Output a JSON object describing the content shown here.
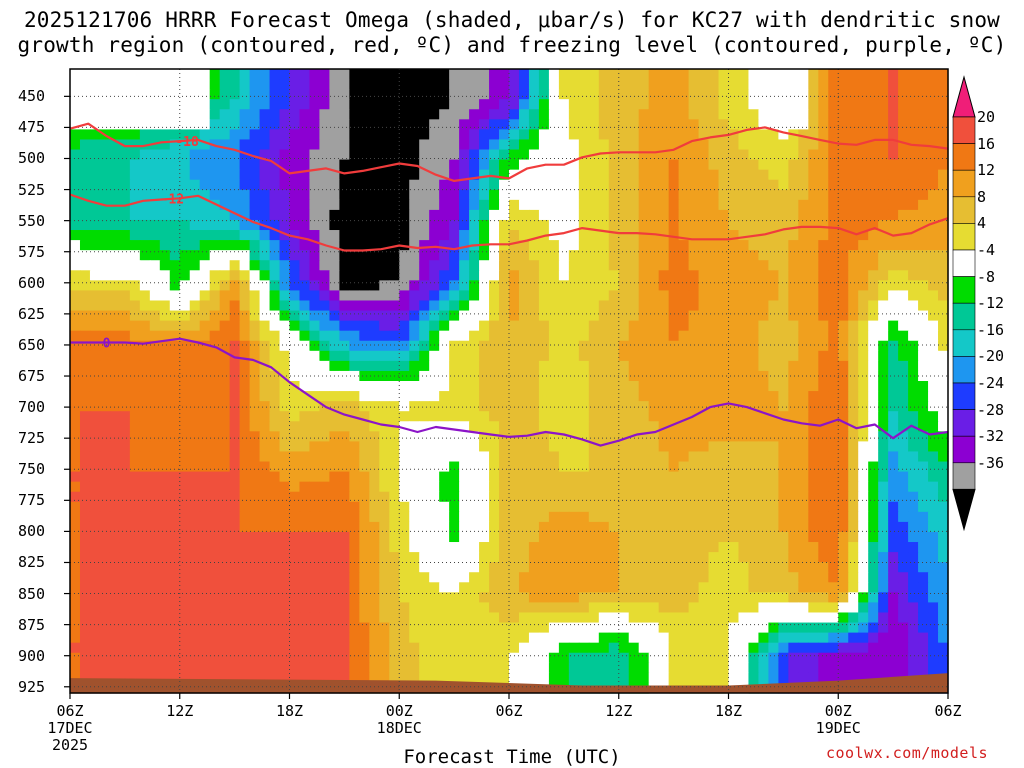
{
  "title_line1": "2025121706 HRRR Forecast Omega (shaded, μbar/s) for KC27 with dendritic snow",
  "title_line2": "growth region (contoured, red, ºC) and freezing level (contoured, purple, ºC)",
  "credit": "coolwx.com/models",
  "colors": {
    "omega_bins": [
      "#000000",
      "#a0a0a0",
      "#8c00d2",
      "#6a1ee6",
      "#1e3cff",
      "#1e96f0",
      "#14c8c8",
      "#00c896",
      "#00dc00",
      "#ffffff",
      "#e6dc32",
      "#e6be32",
      "#f0a01e",
      "#f07814",
      "#f0503c",
      "#f01e78"
    ],
    "dgz_contour": "#f03c3c",
    "freezing_contour": "#8c14c8",
    "ground": "#a0522d"
  },
  "chart_data": {
    "type": "heatmap",
    "title": "2025121706 HRRR Forecast Omega (shaded, μbar/s) for KC27 with dendritic snow growth region (contoured, red, ºC) and freezing level (contoured, purple, ºC)",
    "xlabel": "Forecast Time (UTC)",
    "ylabel": "",
    "x_ticks": [
      {
        "hour": 0,
        "l1": "06Z",
        "l2": "17DEC",
        "l3": "2025"
      },
      {
        "hour": 6,
        "l1": "12Z",
        "l2": "",
        "l3": ""
      },
      {
        "hour": 12,
        "l1": "18Z",
        "l2": "",
        "l3": ""
      },
      {
        "hour": 18,
        "l1": "00Z",
        "l2": "18DEC",
        "l3": ""
      },
      {
        "hour": 24,
        "l1": "06Z",
        "l2": "",
        "l3": ""
      },
      {
        "hour": 30,
        "l1": "12Z",
        "l2": "",
        "l3": ""
      },
      {
        "hour": 36,
        "l1": "18Z",
        "l2": "",
        "l3": ""
      },
      {
        "hour": 42,
        "l1": "00Z",
        "l2": "19DEC",
        "l3": ""
      },
      {
        "hour": 48,
        "l1": "06Z",
        "l2": "",
        "l3": ""
      }
    ],
    "xlim_hours": [
      0,
      48
    ],
    "y_ticks": [
      "450",
      "475",
      "500",
      "525",
      "550",
      "575",
      "600",
      "625",
      "650",
      "675",
      "700",
      "725",
      "750",
      "775",
      "800",
      "825",
      "850",
      "875",
      "900",
      "925"
    ],
    "ylim_hpa": [
      428,
      930
    ],
    "colorbar_labels": [
      "20",
      "16",
      "12",
      "8",
      "4",
      "-4",
      "-8",
      "-12",
      "-16",
      "-20",
      "-24",
      "-28",
      "-32",
      "-36"
    ],
    "colorbar_bounds": [
      -36,
      -32,
      -28,
      -24,
      -20,
      -16,
      -12,
      -8,
      -4,
      4,
      8,
      12,
      16,
      20
    ],
    "omega_hours": [
      0,
      3,
      6,
      9,
      12,
      15,
      18,
      21,
      24,
      27,
      30,
      33,
      36,
      39,
      42,
      45,
      48
    ],
    "omega_levels_hpa": [
      450,
      500,
      550,
      600,
      650,
      700,
      750,
      800,
      850,
      900
    ],
    "omega_values": [
      [
        -99,
        -99,
        -99,
        -12,
        -24,
        -36,
        -40,
        -36,
        -30,
        4,
        10,
        14,
        6,
        -99,
        18,
        20,
        18
      ],
      [
        -10,
        -12,
        -16,
        -20,
        -30,
        -36,
        -38,
        -32,
        -6,
        2,
        10,
        16,
        10,
        6,
        18,
        20,
        16
      ],
      [
        -10,
        -12,
        -12,
        -16,
        -28,
        -38,
        -38,
        -28,
        8,
        2,
        10,
        16,
        12,
        10,
        18,
        16,
        14
      ],
      [
        6,
        6,
        -6,
        14,
        -20,
        -38,
        -36,
        -20,
        14,
        4,
        8,
        18,
        14,
        12,
        18,
        6,
        10
      ],
      [
        18,
        18,
        16,
        20,
        2,
        -16,
        -20,
        4,
        12,
        6,
        12,
        16,
        14,
        10,
        18,
        -10,
        6
      ],
      [
        20,
        20,
        18,
        20,
        6,
        10,
        4,
        6,
        10,
        6,
        10,
        14,
        14,
        12,
        20,
        -12,
        0
      ],
      [
        20,
        20,
        20,
        20,
        14,
        16,
        4,
        -6,
        10,
        8,
        8,
        12,
        10,
        12,
        20,
        -18,
        -8
      ],
      [
        20,
        20,
        20,
        20,
        20,
        20,
        6,
        -6,
        10,
        14,
        12,
        10,
        8,
        12,
        20,
        -22,
        -14
      ],
      [
        20,
        20,
        20,
        20,
        20,
        20,
        8,
        4,
        12,
        14,
        12,
        10,
        6,
        10,
        16,
        -28,
        -16
      ],
      [
        20,
        20,
        20,
        20,
        20,
        20,
        10,
        4,
        4,
        -8,
        -12,
        4,
        4,
        -24,
        -30,
        -32,
        -20
      ]
    ],
    "ground_hpa": [
      [
        0,
        918
      ],
      [
        20,
        920
      ],
      [
        28,
        924
      ],
      [
        36,
        924
      ],
      [
        42,
        920
      ],
      [
        48,
        914
      ]
    ],
    "contours": [
      {
        "label": "-18",
        "label_at_hour": 6.4,
        "points": [
          [
            0,
            476
          ],
          [
            1,
            472
          ],
          [
            2,
            482
          ],
          [
            3,
            490
          ],
          [
            4,
            490
          ],
          [
            5,
            487
          ],
          [
            6,
            486
          ],
          [
            7,
            485
          ],
          [
            8,
            490
          ],
          [
            9,
            493
          ],
          [
            10,
            498
          ],
          [
            11,
            502
          ],
          [
            12,
            512
          ],
          [
            13,
            510
          ],
          [
            14,
            508
          ],
          [
            15,
            512
          ],
          [
            16,
            510
          ],
          [
            17,
            507
          ],
          [
            18,
            504
          ],
          [
            19,
            506
          ],
          [
            20,
            513
          ],
          [
            21,
            518
          ],
          [
            22,
            516
          ],
          [
            23,
            514
          ],
          [
            24,
            516
          ],
          [
            25,
            508
          ],
          [
            26,
            505
          ],
          [
            27,
            505
          ],
          [
            28,
            499
          ],
          [
            29,
            496
          ],
          [
            30,
            495
          ],
          [
            31,
            495
          ],
          [
            32,
            495
          ],
          [
            33,
            493
          ],
          [
            34,
            486
          ],
          [
            35,
            483
          ],
          [
            36,
            481
          ],
          [
            37,
            477
          ],
          [
            38,
            475
          ],
          [
            39,
            479
          ],
          [
            40,
            482
          ],
          [
            41,
            485
          ],
          [
            42,
            488
          ],
          [
            43,
            489
          ],
          [
            44,
            485
          ],
          [
            45,
            485
          ],
          [
            46,
            489
          ],
          [
            47,
            490
          ],
          [
            48,
            492
          ]
        ]
      },
      {
        "label": "-12",
        "label_at_hour": 5.6,
        "points": [
          [
            0,
            529
          ],
          [
            1,
            534
          ],
          [
            2,
            538
          ],
          [
            3,
            538
          ],
          [
            4,
            534
          ],
          [
            5,
            533
          ],
          [
            6,
            532
          ],
          [
            7,
            530
          ],
          [
            8,
            537
          ],
          [
            9,
            544
          ],
          [
            10,
            551
          ],
          [
            11,
            556
          ],
          [
            12,
            562
          ],
          [
            13,
            565
          ],
          [
            14,
            570
          ],
          [
            15,
            574
          ],
          [
            16,
            574
          ],
          [
            17,
            573
          ],
          [
            18,
            570
          ],
          [
            19,
            572
          ],
          [
            20,
            571
          ],
          [
            21,
            573
          ],
          [
            22,
            570
          ],
          [
            23,
            569
          ],
          [
            24,
            569
          ],
          [
            25,
            566
          ],
          [
            26,
            562
          ],
          [
            27,
            560
          ],
          [
            28,
            556
          ],
          [
            29,
            558
          ],
          [
            30,
            560
          ],
          [
            31,
            560
          ],
          [
            32,
            561
          ],
          [
            33,
            563
          ],
          [
            34,
            565
          ],
          [
            35,
            565
          ],
          [
            36,
            565
          ],
          [
            37,
            563
          ],
          [
            38,
            561
          ],
          [
            39,
            557
          ],
          [
            40,
            555
          ],
          [
            41,
            555
          ],
          [
            42,
            556
          ],
          [
            43,
            561
          ],
          [
            44,
            556
          ],
          [
            45,
            562
          ],
          [
            46,
            560
          ],
          [
            47,
            553
          ],
          [
            48,
            548
          ]
        ]
      },
      {
        "label": "0",
        "label_at_hour": 2.0,
        "points": [
          [
            0,
            648
          ],
          [
            1,
            648
          ],
          [
            2,
            648
          ],
          [
            3,
            648
          ],
          [
            4,
            649
          ],
          [
            5,
            647
          ],
          [
            6,
            645
          ],
          [
            7,
            648
          ],
          [
            8,
            652
          ],
          [
            9,
            660
          ],
          [
            10,
            662
          ],
          [
            11,
            668
          ],
          [
            12,
            680
          ],
          [
            13,
            690
          ],
          [
            14,
            700
          ],
          [
            15,
            706
          ],
          [
            16,
            710
          ],
          [
            17,
            714
          ],
          [
            18,
            716
          ],
          [
            19,
            720
          ],
          [
            20,
            716
          ],
          [
            21,
            718
          ],
          [
            22,
            720
          ],
          [
            23,
            722
          ],
          [
            24,
            724
          ],
          [
            25,
            723
          ],
          [
            26,
            720
          ],
          [
            27,
            722
          ],
          [
            28,
            726
          ],
          [
            29,
            731
          ],
          [
            30,
            727
          ],
          [
            31,
            722
          ],
          [
            32,
            720
          ],
          [
            33,
            714
          ],
          [
            34,
            708
          ],
          [
            35,
            700
          ],
          [
            36,
            697
          ],
          [
            37,
            700
          ],
          [
            38,
            705
          ],
          [
            39,
            710
          ],
          [
            40,
            713
          ],
          [
            41,
            715
          ],
          [
            42,
            710
          ],
          [
            43,
            717
          ],
          [
            44,
            714
          ],
          [
            45,
            725
          ],
          [
            46,
            715
          ],
          [
            47,
            722
          ],
          [
            48,
            720
          ]
        ]
      }
    ]
  }
}
